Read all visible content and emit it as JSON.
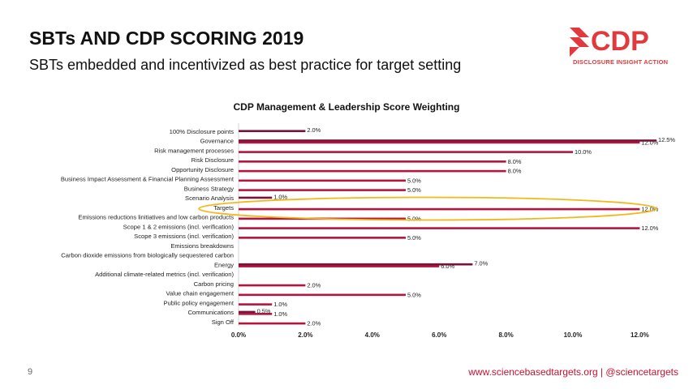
{
  "slide": {
    "title": "SBTs AND CDP SCORING 2019",
    "subtitle": "SBTs embedded and incentivized as best practice for target setting",
    "page_number": "9",
    "footer": "www.sciencebasedtargets.org | @sciencetargets"
  },
  "logo": {
    "text": "CDP",
    "tagline": "DISCLOSURE INSIGHT ACTION",
    "color": "#e03a3e"
  },
  "chart_data": {
    "type": "bar",
    "orientation": "horizontal",
    "title": "CDP Management & Leadership Score Weighting",
    "xlim": [
      0,
      12
    ],
    "xticks": [
      "0.0%",
      "2.0%",
      "4.0%",
      "6.0%",
      "8.0%",
      "10.0%",
      "12.0%"
    ],
    "colors": {
      "primary": "#b5153c",
      "secondary": "#7a1339",
      "highlight": "#f2b81a"
    },
    "highlighted_category": "Targets",
    "categories": [
      "100% Disclosure points",
      "Governance",
      "Risk management processes",
      "Risk Disclosure",
      "Opportunity Disclosure",
      "Business Impact Assessment & Financial Planning Assessment",
      "Business Strategy",
      "Scenario Analysis",
      "Targets",
      "Emissions reductions linitiatives and low carbon products",
      "Scope 1 & 2 emissions (incl. verification)",
      "Scope 3 emissions (incl. verification)",
      "Emissions breakdowns",
      "Carbon dioxide emissions from biologically sequestered carbon",
      "Energy",
      "Additional climate-related metrics (incl. verification)",
      "Carbon pricing",
      "Value chain engagement",
      "Public policy engagement",
      "Communications",
      "Sign Off"
    ],
    "series": [
      {
        "values": [
          null,
          12.0,
          10.0,
          8.0,
          8.0,
          5.0,
          5.0,
          null,
          12.0,
          5.0,
          12.0,
          5.0,
          null,
          null,
          6.0,
          null,
          2.0,
          5.0,
          1.0,
          1.0,
          2.0
        ],
        "labels": [
          "",
          "12.0%",
          "10.0%",
          "8.0%",
          "8.0%",
          "5.0%",
          "5.0%",
          "",
          "12.0%",
          "5.0%",
          "12.0%",
          "5.0%",
          "",
          "",
          "6.0%",
          "",
          "2.0%",
          "5.0%",
          "1.0%",
          "1.0%",
          "2.0%"
        ]
      },
      {
        "values": [
          2.0,
          12.5,
          null,
          null,
          null,
          null,
          null,
          1.0,
          null,
          null,
          null,
          null,
          null,
          null,
          7.0,
          null,
          null,
          null,
          null,
          0.5,
          null
        ],
        "labels": [
          "2.0%",
          "12.5%",
          "",
          "",
          "",
          "",
          "",
          "1.0%",
          "",
          "",
          "",
          "",
          "",
          "",
          "7.0%",
          "",
          "",
          "",
          "",
          "0.5%",
          ""
        ]
      }
    ]
  }
}
